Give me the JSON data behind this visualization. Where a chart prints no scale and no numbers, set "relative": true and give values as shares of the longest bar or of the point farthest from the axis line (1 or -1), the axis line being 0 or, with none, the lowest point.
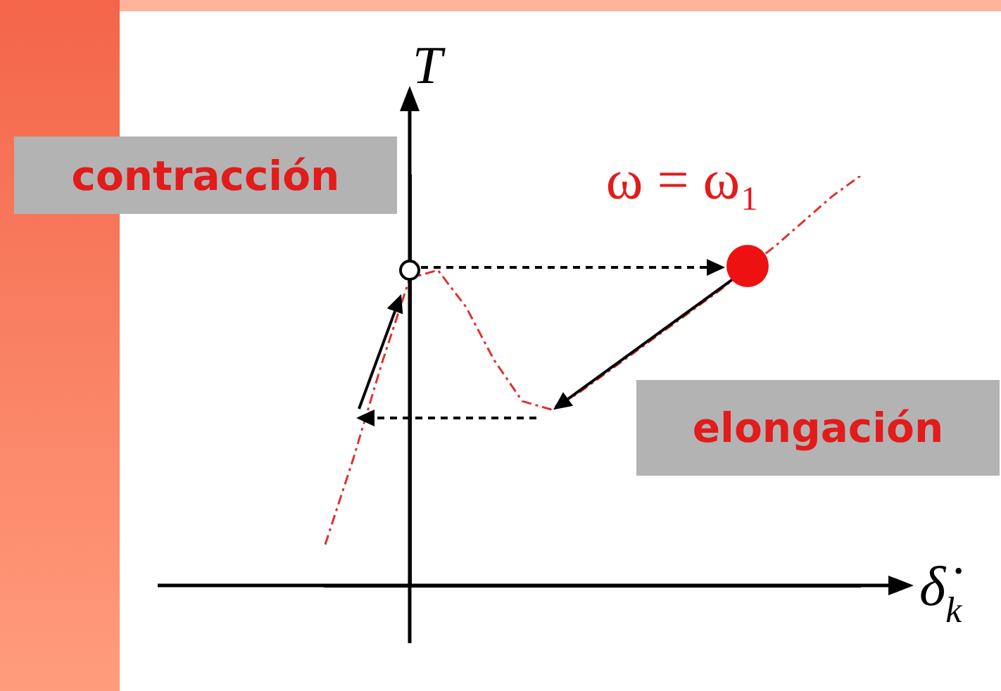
{
  "chart_data": {
    "type": "line",
    "relative": true,
    "xlabel": "δ̇$_{k}$",
    "ylabel": "T",
    "categories": [
      null,
      null,
      null,
      null,
      null,
      null,
      null,
      null,
      null,
      null,
      null,
      null,
      null,
      null,
      null,
      null,
      null,
      null,
      null,
      null
    ],
    "series": [
      {
        "color": "#e03030",
        "line_style": "dashed",
        "marker": "none",
        "values": [
          0.1,
          0.31,
          0.54,
          0.75,
          0.77,
          0.68,
          0.55,
          0.45,
          0.43,
          0.47,
          0.52,
          0.57,
          0.62,
          0.67,
          0.72,
          null,
          0.83,
          0.89,
          0.95,
          1.0
        ]
      }
    ],
    "annotations": [
      "contracción",
      "elongación",
      "ω = ω₁"
    ]
  }
}
